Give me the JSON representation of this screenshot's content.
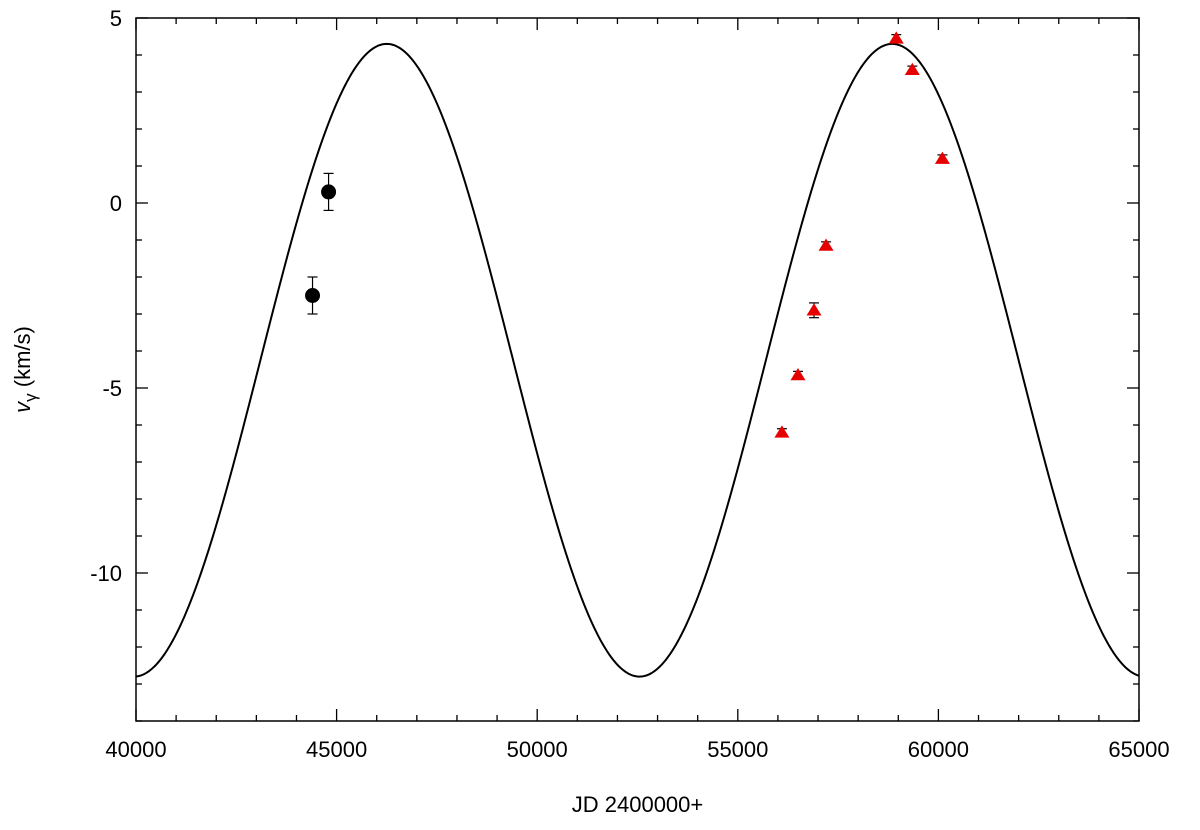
{
  "chart_data": {
    "type": "scatter",
    "xlabel": "JD 2400000+",
    "ylabel_main": "v",
    "ylabel_sub": "γ",
    "ylabel_unit": " (km/s)",
    "xlim": [
      40000,
      65000
    ],
    "ylim": [
      -14,
      5
    ],
    "x_ticks": [
      40000,
      45000,
      50000,
      55000,
      60000,
      65000
    ],
    "x_tick_labels": [
      "40000",
      "45000",
      "50000",
      "55000",
      "60000",
      "65000"
    ],
    "y_ticks": [
      -10,
      -5,
      0,
      5
    ],
    "y_tick_labels": [
      "-10",
      "-5",
      "0",
      "5"
    ],
    "grid": false,
    "legend": "none",
    "series": [
      {
        "marker": "circle",
        "color": "#000000",
        "points": [
          {
            "x": 44400,
            "y": -2.5,
            "err": 0.5
          },
          {
            "x": 44800,
            "y": 0.3,
            "err": 0.5
          }
        ]
      },
      {
        "marker": "triangle",
        "color": "#e60000",
        "points": [
          {
            "x": 56100,
            "y": -6.2,
            "err": 0.1
          },
          {
            "x": 56500,
            "y": -4.65,
            "err": 0.1
          },
          {
            "x": 56900,
            "y": -2.9,
            "err": 0.2
          },
          {
            "x": 57200,
            "y": -1.15,
            "err": 0.1
          },
          {
            "x": 58950,
            "y": 4.45,
            "err": 0.1
          },
          {
            "x": 59350,
            "y": 3.6,
            "err": 0.1
          },
          {
            "x": 60100,
            "y": 1.2,
            "err": 0.1
          }
        ]
      }
    ],
    "model_curve": {
      "type": "line",
      "color": "#000000",
      "function": "sine",
      "mean": -4.25,
      "amplitude": 8.55,
      "period": 12600,
      "peak_at": 46250
    }
  }
}
